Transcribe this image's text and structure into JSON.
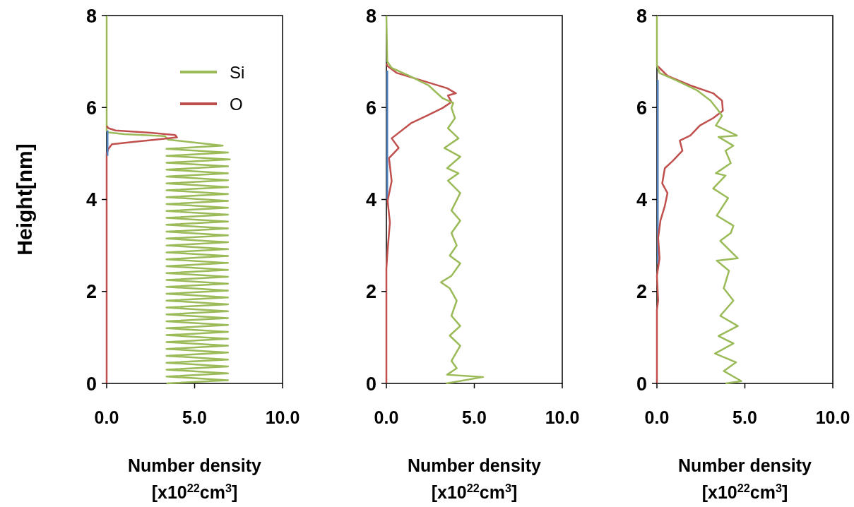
{
  "chart_data": [
    {
      "type": "line",
      "ylabel": "Height[nm]",
      "xlabel": "Number density\n[x10$^{22}$cm$^{3}$]",
      "xlim": [
        0,
        10
      ],
      "xticks": [
        {
          "value": 0,
          "label": "0.0"
        },
        {
          "value": 5,
          "label": "5.0"
        },
        {
          "value": 10,
          "label": "10.0"
        }
      ],
      "ylim": [
        0,
        8
      ],
      "yticks": [
        0,
        2,
        4,
        6,
        8
      ],
      "legend": "top right",
      "series": [
        {
          "name": "Si",
          "color": "#9bbb59",
          "x": [
            3.4,
            6.9,
            3.4,
            6.9,
            3.4,
            6.9,
            3.4,
            6.9,
            3.4,
            6.9,
            3.4,
            6.9,
            3.4,
            6.9,
            3.4,
            6.9,
            3.4,
            6.9,
            3.4,
            6.9,
            3.4,
            6.9,
            3.4,
            6.9,
            3.4,
            6.9,
            3.4,
            6.9,
            3.4,
            6.9,
            3.4,
            6.9,
            3.4,
            6.9,
            3.4,
            6.9,
            3.4,
            6.9,
            3.4,
            6.9,
            3.4,
            6.9,
            3.4,
            6.9,
            3.4,
            6.9,
            3.4,
            6.9,
            3.4,
            6.9,
            3.4,
            6.9,
            3.4,
            6.9,
            3.4,
            6.9,
            3.4,
            6.9,
            3.4,
            6.9,
            3.4,
            6.9,
            3.4,
            6.9,
            3.4,
            7.0,
            3.4,
            6.9,
            3.4,
            6.6,
            3.5,
            3.3,
            1.0,
            0.1,
            0,
            0
          ],
          "values": [
            0,
            0.07,
            0.15,
            0.22,
            0.3,
            0.37,
            0.45,
            0.52,
            0.6,
            0.67,
            0.75,
            0.82,
            0.9,
            0.97,
            1.05,
            1.12,
            1.2,
            1.27,
            1.35,
            1.42,
            1.5,
            1.57,
            1.65,
            1.72,
            1.8,
            1.87,
            1.95,
            2.02,
            2.1,
            2.17,
            2.25,
            2.32,
            2.4,
            2.47,
            2.55,
            2.62,
            2.7,
            2.77,
            2.85,
            2.92,
            3.0,
            3.07,
            3.15,
            3.22,
            3.3,
            3.37,
            3.45,
            3.52,
            3.6,
            3.67,
            3.75,
            3.82,
            3.9,
            3.97,
            4.05,
            4.12,
            4.2,
            4.27,
            4.35,
            4.42,
            4.5,
            4.57,
            4.65,
            4.72,
            4.8,
            4.87,
            4.95,
            5.02,
            5.1,
            5.17,
            5.3,
            5.38,
            5.42,
            5.46,
            5.5,
            8
          ]
        },
        {
          "name": "O",
          "color": "#c0504d",
          "x": [
            0,
            0,
            0.1,
            0.3,
            1.5,
            2.8,
            4.0,
            3.9,
            2.5,
            0.5,
            0.1,
            0
          ],
          "values": [
            0,
            5.0,
            5.1,
            5.2,
            5.25,
            5.3,
            5.35,
            5.4,
            5.45,
            5.5,
            5.55,
            5.6
          ]
        },
        {
          "color": "#4f81bd",
          "x": [
            0.05,
            0.05
          ],
          "values": [
            4.95,
            5.5
          ]
        }
      ]
    },
    {
      "type": "line",
      "xlabel": "Number density\n[x10$^{22}$cm$^{3}$]",
      "xlim": [
        0,
        10
      ],
      "xticks": [
        {
          "value": 0,
          "label": "0.0"
        },
        {
          "value": 5,
          "label": "5.0"
        },
        {
          "value": 10,
          "label": "10.0"
        }
      ],
      "ylim": [
        0,
        8
      ],
      "yticks": [
        0,
        2,
        4,
        6,
        8
      ],
      "series": [
        {
          "color": "#4f81bd",
          "x": [
            0.05,
            0.05
          ],
          "values": [
            4.0,
            6.8
          ]
        },
        {
          "color": "#c0504d",
          "x": [
            0,
            0,
            0.07,
            0.2,
            0.07,
            0.3,
            0.15,
            0.7,
            0.3,
            1.4,
            2.3,
            3.2,
            3.7,
            3.5,
            3.95,
            3.45,
            2.0,
            0.6,
            0.07,
            0
          ],
          "values": [
            0,
            2.5,
            2.9,
            3.5,
            3.97,
            4.4,
            4.9,
            5.12,
            5.33,
            5.66,
            5.82,
            5.99,
            6.12,
            6.26,
            6.31,
            6.42,
            6.59,
            6.75,
            6.9,
            6.96
          ]
        },
        {
          "color": "#9bbb59",
          "x": [
            3.4,
            5.5,
            3.45,
            4.0,
            3.7,
            4.2,
            3.6,
            4.2,
            3.7,
            4.0,
            3.6,
            3.1,
            3.7,
            4.2,
            3.6,
            4.0,
            3.7,
            4.2,
            3.7,
            4.2,
            3.5,
            4.1,
            3.45,
            4.2,
            3.3,
            4.1,
            3.5,
            3.9,
            3.7,
            3.8,
            3.2,
            2.4,
            1.3,
            0.3,
            0.05,
            0
          ],
          "values": [
            0,
            0.14,
            0.19,
            0.33,
            0.49,
            0.82,
            1.04,
            1.25,
            1.47,
            1.8,
            2.07,
            2.2,
            2.34,
            2.61,
            2.78,
            3.0,
            3.27,
            3.54,
            3.76,
            4.14,
            4.41,
            4.57,
            4.68,
            4.93,
            5.12,
            5.33,
            5.55,
            5.77,
            5.99,
            6.1,
            6.2,
            6.48,
            6.69,
            6.86,
            7.0,
            8
          ]
        }
      ]
    },
    {
      "type": "line",
      "xlabel": "Number density\n[x10$^{22}$cm$^{3}$]",
      "xlim": [
        0,
        10
      ],
      "xticks": [
        {
          "value": 0,
          "label": "0.0"
        },
        {
          "value": 5,
          "label": "5.0"
        },
        {
          "value": 10,
          "label": "10.0"
        }
      ],
      "ylim": [
        0,
        8
      ],
      "yticks": [
        0,
        2,
        4,
        6,
        8
      ],
      "series": [
        {
          "color": "#4f81bd",
          "x": [
            0.05,
            0.05,
            0.05,
            0.05,
            0.05
          ],
          "values": [
            2.6,
            3.5,
            4.5,
            5.5,
            6.6
          ]
        },
        {
          "color": "#c0504d",
          "x": [
            0,
            0,
            0.07,
            0,
            0.15,
            0.07,
            0.2,
            0.45,
            0.6,
            0.3,
            0.45,
            0.9,
            1.45,
            1.3,
            1.9,
            2.45,
            3.2,
            3.75,
            3.7,
            3.2,
            1.9,
            0.6,
            0.15,
            0
          ],
          "values": [
            0,
            1.6,
            1.8,
            2.34,
            2.72,
            3.16,
            3.54,
            3.86,
            4.14,
            4.35,
            4.68,
            4.84,
            5.06,
            5.28,
            5.39,
            5.61,
            5.77,
            5.93,
            6.15,
            6.31,
            6.48,
            6.69,
            6.86,
            6.91
          ]
        },
        {
          "color": "#9bbb59",
          "x": [
            3.9,
            4.8,
            3.8,
            4.5,
            3.3,
            4.35,
            3.5,
            4.6,
            3.6,
            4.35,
            3.8,
            4.1,
            3.4,
            4.6,
            3.6,
            4.2,
            4.35,
            3.4,
            4.05,
            3.2,
            3.9,
            3.35,
            4.2,
            3.9,
            4.35,
            3.5,
            4.55,
            3.35,
            3.7,
            3.5,
            3.05,
            2.3,
            1.15,
            0.15,
            0,
            0
          ],
          "values": [
            0,
            0.05,
            0.27,
            0.46,
            0.65,
            0.87,
            1.03,
            1.25,
            1.47,
            1.8,
            2.07,
            2.45,
            2.67,
            2.72,
            3.1,
            3.27,
            3.43,
            3.65,
            4.03,
            4.24,
            4.52,
            4.57,
            4.79,
            5.06,
            5.17,
            5.36,
            5.39,
            5.61,
            5.82,
            5.93,
            6.15,
            6.37,
            6.58,
            6.75,
            6.91,
            8
          ]
        }
      ]
    }
  ]
}
